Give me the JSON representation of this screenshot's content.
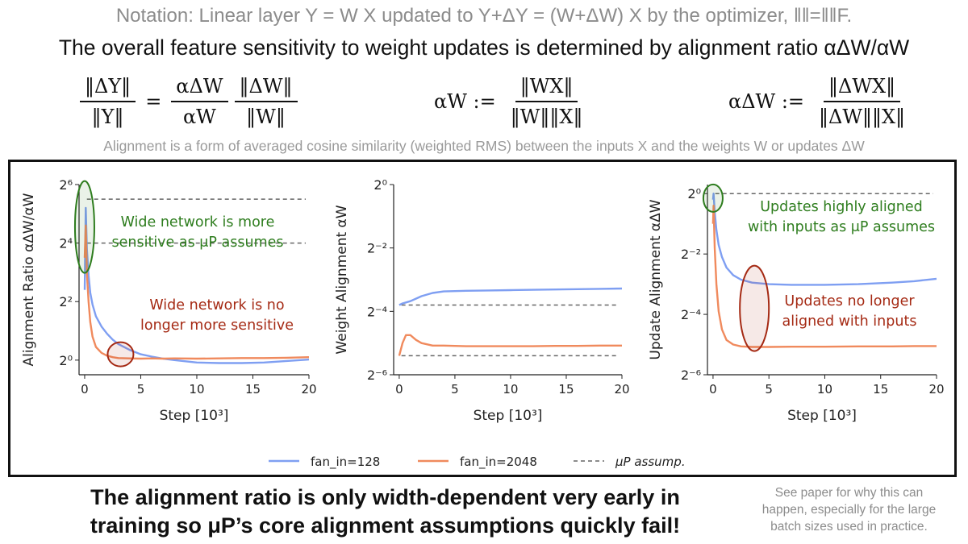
{
  "header": {
    "notation": "Notation: Linear layer Y = W X updated to Y+ΔY = (W+ΔW) X by the optimizer, ‖‖=‖‖F.",
    "headline": "The overall feature sensitivity to weight updates is determined by alignment ratio αΔW/αW",
    "subhead": "Alignment is a form of averaged cosine similarity (weighted RMS) between the inputs X and the weights W or updates ΔW"
  },
  "equations": {
    "ratio": {
      "lhs_num": "‖ΔY‖",
      "lhs_den": "‖Y‖",
      "equals": "=",
      "mid_num": "αΔW",
      "mid_den": "αW",
      "rhs_num": "‖ΔW‖",
      "rhs_den": "‖W‖"
    },
    "alpha_w": {
      "lhs": "αW :=",
      "num": "‖WX‖",
      "den": "‖W‖‖X‖"
    },
    "alpha_dw": {
      "lhs": "αΔW :=",
      "num": "‖ΔWX‖",
      "den": "‖ΔW‖‖X‖"
    }
  },
  "colors": {
    "fan_in_128": "#7f9ff2",
    "fan_in_2048": "#f08a5d",
    "mup": "#666666",
    "green": "#2e7d1e",
    "red": "#a52a14"
  },
  "legend": {
    "series1": "fan_in=128",
    "series2": "fan_in=2048",
    "reference": "μP assump."
  },
  "chart_data": [
    {
      "type": "line",
      "title": "",
      "xlabel": "Step [10³]",
      "ylabel": "Alignment Ratio αΔW/αW",
      "xlim": [
        -0.5,
        20
      ],
      "ylim_log2": [
        -0.5,
        6
      ],
      "xticks": [
        0,
        5,
        10,
        15,
        20
      ],
      "yticks_log2": [
        0,
        2,
        4,
        6
      ],
      "ytick_labels": [
        "2⁰",
        "2²",
        "2⁴",
        "2⁶"
      ],
      "x": [
        0,
        0.1,
        0.2,
        0.35,
        0.5,
        0.7,
        1,
        1.5,
        2,
        2.5,
        3,
        4,
        5,
        6,
        7,
        8,
        10,
        12,
        14,
        16,
        18,
        20
      ],
      "series": [
        {
          "name": "fan_in=128",
          "values_log2": [
            2.4,
            5.2,
            3.8,
            2.9,
            2.3,
            1.9,
            1.5,
            1.15,
            0.9,
            0.7,
            0.55,
            0.35,
            0.2,
            0.12,
            0.05,
            0.0,
            -0.08,
            -0.1,
            -0.1,
            -0.08,
            -0.03,
            0.02
          ]
        },
        {
          "name": "fan_in=2048",
          "values_log2": [
            3.5,
            4.6,
            3.0,
            2.0,
            1.3,
            0.8,
            0.45,
            0.25,
            0.15,
            0.1,
            0.07,
            0.06,
            0.05,
            0.06,
            0.05,
            0.06,
            0.05,
            0.06,
            0.07,
            0.07,
            0.08,
            0.1
          ]
        }
      ],
      "reference_lines_log2": [
        5.5,
        4.0
      ],
      "annotations": [
        {
          "text": [
            "Wide network is more",
            "sensitive as μP assumes"
          ],
          "color": "green"
        },
        {
          "text": [
            "Wide network is no",
            "longer more sensitive"
          ],
          "color": "red"
        }
      ]
    },
    {
      "type": "line",
      "title": "",
      "xlabel": "Step [10³]",
      "ylabel": "Weight Alignment αW",
      "xlim": [
        -0.5,
        20
      ],
      "ylim_log2": [
        -6,
        0
      ],
      "xticks": [
        0,
        5,
        10,
        15,
        20
      ],
      "yticks_log2": [
        -6,
        -4,
        -2,
        0
      ],
      "ytick_labels": [
        "2⁻⁶",
        "2⁻⁴",
        "2⁻²",
        "2⁰"
      ],
      "x": [
        0,
        0.3,
        0.6,
        1,
        1.5,
        2,
        3,
        4,
        6,
        8,
        10,
        12,
        14,
        16,
        18,
        20
      ],
      "series": [
        {
          "name": "fan_in=128",
          "values_log2": [
            -3.8,
            -3.75,
            -3.72,
            -3.68,
            -3.6,
            -3.52,
            -3.42,
            -3.37,
            -3.35,
            -3.34,
            -3.33,
            -3.32,
            -3.31,
            -3.3,
            -3.29,
            -3.28
          ]
        },
        {
          "name": "fan_in=2048",
          "values_log2": [
            -5.4,
            -5.0,
            -4.75,
            -4.75,
            -4.9,
            -5.0,
            -5.08,
            -5.08,
            -5.1,
            -5.1,
            -5.1,
            -5.1,
            -5.09,
            -5.09,
            -5.08,
            -5.08
          ]
        }
      ],
      "reference_lines_log2": [
        -3.8,
        -5.4
      ],
      "annotations": []
    },
    {
      "type": "line",
      "title": "",
      "xlabel": "Step [10³]",
      "ylabel": "Update Alignment αΔW",
      "xlim": [
        -0.5,
        20
      ],
      "ylim_log2": [
        -6,
        0.3
      ],
      "xticks": [
        0,
        5,
        10,
        15,
        20
      ],
      "yticks_log2": [
        -6,
        -4,
        -2,
        0
      ],
      "ytick_labels": [
        "2⁻⁶",
        "2⁻⁴",
        "2⁻²",
        "2⁰"
      ],
      "x": [
        0,
        0.05,
        0.15,
        0.3,
        0.5,
        0.8,
        1.2,
        1.8,
        2.5,
        3.5,
        5,
        7,
        10,
        13,
        16,
        18,
        20
      ],
      "series": [
        {
          "name": "fan_in=128",
          "values_log2": [
            -0.2,
            0.0,
            -0.6,
            -1.2,
            -1.7,
            -2.1,
            -2.45,
            -2.7,
            -2.85,
            -2.95,
            -3.0,
            -3.02,
            -3.02,
            -3.0,
            -2.95,
            -2.9,
            -2.82
          ]
        },
        {
          "name": "fan_in=2048",
          "values_log2": [
            -1.0,
            -0.4,
            -1.8,
            -3.0,
            -3.9,
            -4.5,
            -4.85,
            -5.0,
            -5.06,
            -5.08,
            -5.08,
            -5.07,
            -5.07,
            -5.06,
            -5.06,
            -5.05,
            -5.05
          ]
        }
      ],
      "reference_lines_log2": [
        0
      ],
      "annotations": [
        {
          "text": [
            "Updates highly aligned",
            "with inputs as μP assumes"
          ],
          "color": "green"
        },
        {
          "text": [
            "Updates no longer",
            "aligned with inputs"
          ],
          "color": "red"
        }
      ]
    }
  ],
  "footer": {
    "line1": "The alignment ratio is only width-dependent very early in",
    "line2": "training so μP’s core alignment assumptions quickly fail!",
    "note1": "See paper for why this can",
    "note2": "happen, especially for the large",
    "note3": "batch sizes used in practice."
  }
}
